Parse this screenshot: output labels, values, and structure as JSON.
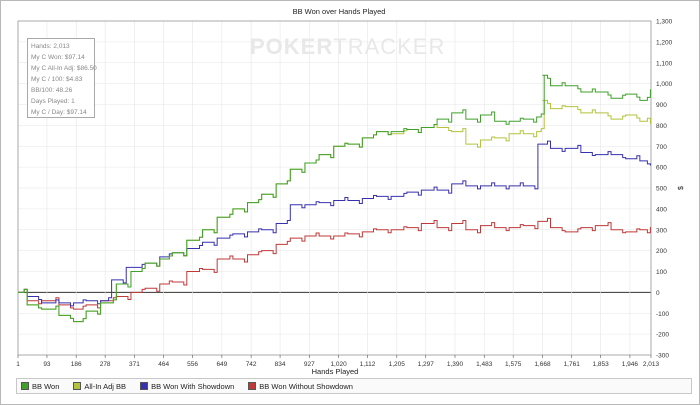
{
  "chart_data": {
    "type": "line",
    "title": "BB Won over Hands Played",
    "xlabel": "Hands Played",
    "ylabel": "$",
    "xlim": [
      1,
      2013
    ],
    "ylim": [
      -300,
      1300
    ],
    "x_ticks": [
      1,
      93,
      186,
      278,
      371,
      464,
      556,
      649,
      742,
      834,
      927,
      1020,
      1112,
      1205,
      1297,
      1390,
      1483,
      1575,
      1668,
      1761,
      1853,
      1946,
      2013
    ],
    "x_tick_labels": [
      "1",
      "93",
      "186",
      "278",
      "371",
      "464",
      "556",
      "649",
      "742",
      "834",
      "927",
      "1,020",
      "1,112",
      "1,205",
      "1,297",
      "1,390",
      "1,483",
      "1,575",
      "1,668",
      "1,761",
      "1,853",
      "1,946",
      "2,013"
    ],
    "y_ticks": [
      -300,
      -200,
      -100,
      0,
      100,
      200,
      300,
      400,
      500,
      600,
      700,
      800,
      900,
      1000,
      1100,
      1200,
      1300
    ],
    "y_tick_labels": [
      "-300",
      "-200",
      "-100",
      "0",
      "100",
      "200",
      "300",
      "400",
      "500",
      "600",
      "700",
      "800",
      "900",
      "1,000",
      "1,100",
      "1,200",
      "1,300"
    ],
    "grid": true,
    "legend_position": "bottom",
    "series": [
      {
        "name": "BB Won",
        "color": "#3fa02a",
        "x": [
          1,
          40,
          93,
          150,
          186,
          230,
          278,
          330,
          371,
          420,
          464,
          500,
          556,
          600,
          649,
          700,
          742,
          790,
          834,
          880,
          927,
          970,
          1020,
          1060,
          1112,
          1150,
          1205,
          1250,
          1297,
          1350,
          1390,
          1440,
          1483,
          1530,
          1575,
          1620,
          1660,
          1668,
          1700,
          1761,
          1800,
          1853,
          1900,
          1946,
          1990,
          2013
        ],
        "y": [
          0,
          -60,
          -80,
          -110,
          -140,
          -90,
          -50,
          40,
          100,
          140,
          160,
          190,
          250,
          300,
          360,
          400,
          430,
          470,
          520,
          590,
          620,
          660,
          700,
          710,
          740,
          770,
          770,
          780,
          790,
          830,
          860,
          830,
          850,
          820,
          820,
          830,
          840,
          1040,
          990,
          990,
          960,
          960,
          930,
          950,
          920,
          970
        ]
      },
      {
        "name": "All-In Adj BB",
        "color": "#b3c43a",
        "x": [
          1,
          40,
          93,
          150,
          186,
          230,
          278,
          330,
          371,
          420,
          464,
          500,
          556,
          600,
          649,
          700,
          742,
          790,
          834,
          880,
          927,
          970,
          1020,
          1060,
          1112,
          1150,
          1205,
          1250,
          1297,
          1350,
          1390,
          1440,
          1483,
          1530,
          1575,
          1620,
          1660,
          1668,
          1700,
          1761,
          1800,
          1853,
          1900,
          1946,
          1990,
          2013
        ],
        "y": [
          0,
          -60,
          -80,
          -110,
          -140,
          -90,
          -50,
          40,
          100,
          140,
          160,
          190,
          250,
          300,
          360,
          400,
          430,
          470,
          520,
          590,
          620,
          660,
          700,
          710,
          740,
          770,
          760,
          780,
          790,
          790,
          770,
          710,
          730,
          740,
          760,
          760,
          770,
          920,
          880,
          890,
          860,
          860,
          830,
          850,
          820,
          810
        ]
      },
      {
        "name": "BB Won With Showdown",
        "color": "#3730b0",
        "x": [
          1,
          40,
          93,
          150,
          186,
          230,
          278,
          300,
          371,
          420,
          464,
          500,
          556,
          600,
          649,
          700,
          742,
          790,
          834,
          880,
          927,
          970,
          1020,
          1060,
          1112,
          1150,
          1205,
          1250,
          1297,
          1350,
          1390,
          1440,
          1483,
          1530,
          1575,
          1620,
          1668,
          1700,
          1761,
          1800,
          1853,
          1900,
          1946,
          1990,
          2013
        ],
        "y": [
          0,
          -20,
          -50,
          -50,
          -50,
          -40,
          -40,
          60,
          120,
          140,
          170,
          190,
          210,
          240,
          260,
          280,
          290,
          300,
          330,
          420,
          420,
          430,
          440,
          440,
          450,
          460,
          460,
          480,
          490,
          490,
          520,
          510,
          510,
          510,
          510,
          510,
          710,
          690,
          690,
          670,
          660,
          660,
          640,
          630,
          610
        ]
      },
      {
        "name": "BB Won Without Showdown",
        "color": "#c03838",
        "x": [
          1,
          40,
          93,
          150,
          186,
          230,
          278,
          330,
          371,
          420,
          464,
          500,
          556,
          600,
          649,
          700,
          742,
          790,
          834,
          880,
          927,
          970,
          1020,
          1060,
          1112,
          1150,
          1205,
          1250,
          1297,
          1350,
          1390,
          1440,
          1483,
          1530,
          1575,
          1620,
          1668,
          1700,
          1761,
          1800,
          1853,
          1900,
          1946,
          1990,
          2013
        ],
        "y": [
          0,
          -40,
          -40,
          -60,
          -80,
          -60,
          -40,
          -20,
          0,
          20,
          40,
          50,
          100,
          110,
          160,
          160,
          180,
          200,
          230,
          260,
          270,
          270,
          270,
          280,
          290,
          300,
          300,
          310,
          330,
          310,
          330,
          300,
          320,
          310,
          310,
          320,
          340,
          310,
          290,
          310,
          320,
          300,
          290,
          300,
          310
        ]
      }
    ]
  },
  "watermark": {
    "bold": "POKER",
    "thin": "TRACKER"
  },
  "stats": [
    "Hands: 2,013",
    "My C Won: $97.14",
    "My C All-In Adj: $86.50",
    "My C / 100: $4.83",
    "BB/100: 48.26",
    "Days Played: 1",
    "My C / Day: $97.14"
  ],
  "colors": {
    "grid": "#e6e6e6",
    "zero_line": "#333333",
    "axis": "#555555"
  }
}
